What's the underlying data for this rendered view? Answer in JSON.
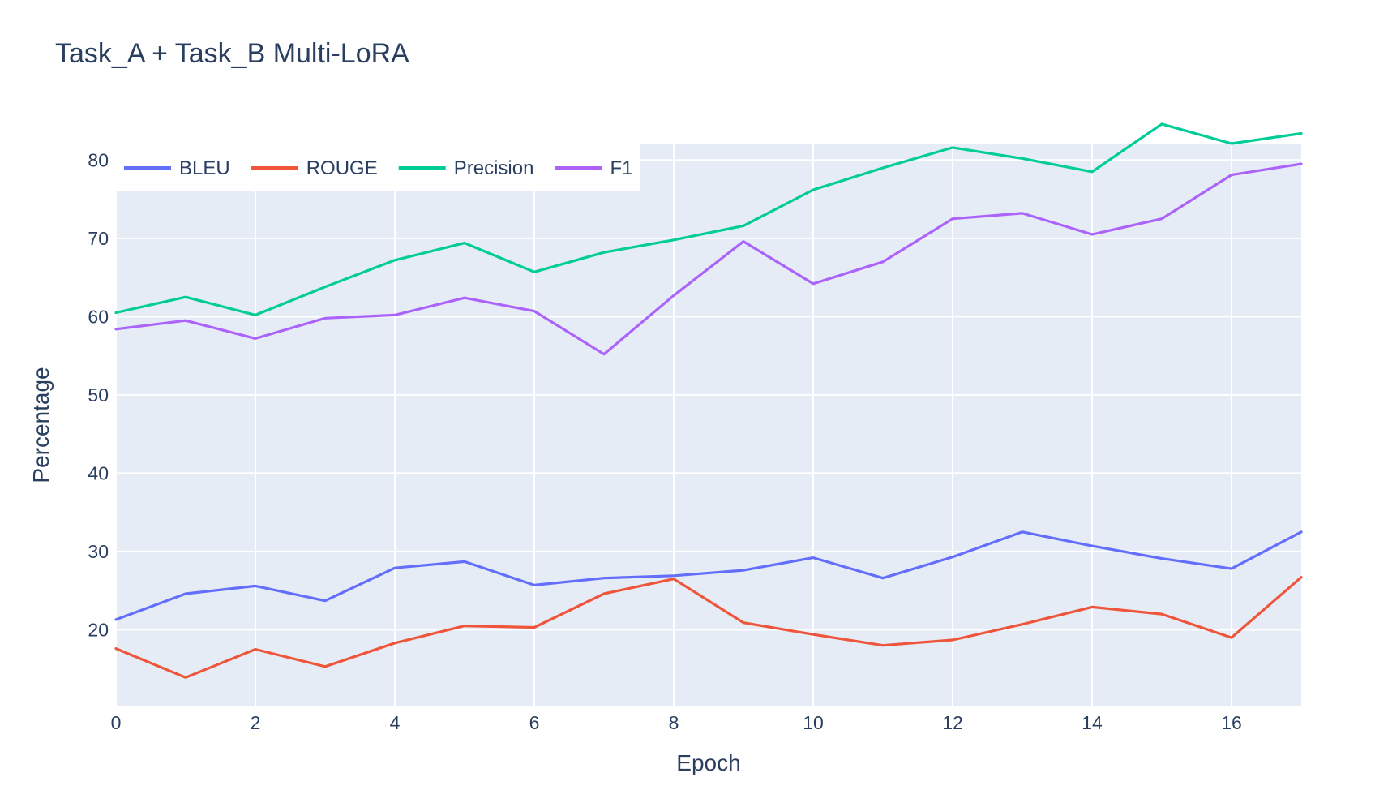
{
  "chart_data": {
    "type": "line",
    "title": "Task_A + Task_B Multi-LoRA",
    "xlabel": "Epoch",
    "ylabel": "Percentage",
    "x": [
      0,
      1,
      2,
      3,
      4,
      5,
      6,
      7,
      8,
      9,
      10,
      11,
      12,
      13,
      14,
      15,
      16,
      17
    ],
    "xlim": [
      0,
      17
    ],
    "ylim": [
      10.2,
      82.0
    ],
    "x_ticks": [
      "0",
      "2",
      "4",
      "6",
      "8",
      "10",
      "12",
      "14",
      "16"
    ],
    "y_ticks": [
      "20",
      "30",
      "40",
      "50",
      "60",
      "70",
      "80"
    ],
    "grid": true,
    "legend_position": "top-left",
    "plot_background": "#e5ecf6",
    "series": [
      {
        "name": "BLEU",
        "color": "#636efa",
        "values": [
          21.3,
          24.6,
          25.6,
          23.7,
          27.9,
          28.7,
          25.7,
          26.6,
          26.9,
          27.6,
          29.2,
          26.6,
          29.3,
          32.5,
          30.7,
          29.1,
          27.8,
          32.5
        ]
      },
      {
        "name": "ROUGE",
        "color": "#ef553b",
        "values": [
          17.6,
          13.9,
          17.5,
          15.3,
          18.3,
          20.5,
          20.3,
          24.6,
          26.5,
          20.9,
          19.4,
          18.0,
          18.7,
          20.7,
          22.9,
          22.0,
          19.0,
          26.7
        ]
      },
      {
        "name": "Precision",
        "color": "#00cc96",
        "values": [
          60.5,
          62.5,
          60.2,
          63.8,
          67.2,
          69.4,
          65.7,
          68.2,
          69.8,
          71.6,
          76.2,
          79.0,
          81.6,
          80.2,
          78.5,
          84.6,
          82.1,
          83.4
        ]
      },
      {
        "name": "F1",
        "color": "#ab63fa",
        "values": [
          58.4,
          59.5,
          57.2,
          59.8,
          60.2,
          62.4,
          60.7,
          55.2,
          62.7,
          69.6,
          64.2,
          67.0,
          72.5,
          73.2,
          70.5,
          72.5,
          78.1,
          79.5
        ]
      }
    ]
  }
}
